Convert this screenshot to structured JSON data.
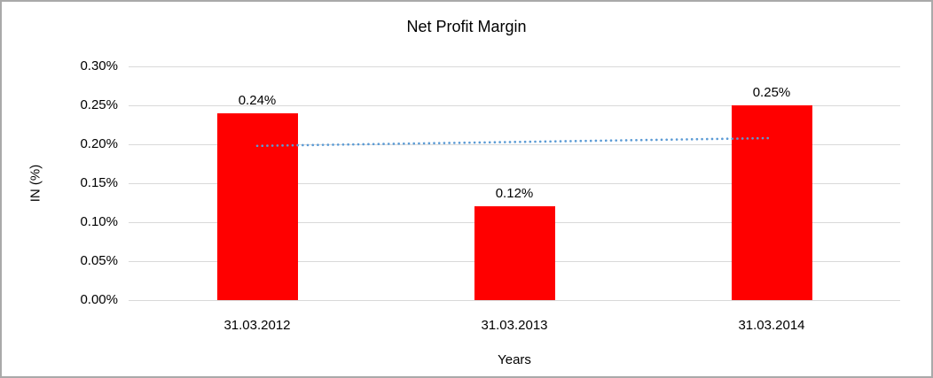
{
  "chart_data": {
    "type": "bar",
    "title": "Net Profit Margin",
    "xlabel": "Years",
    "ylabel": "IN (%)",
    "categories": [
      "31.03.2012",
      "31.03.2013",
      "31.03.2014"
    ],
    "values": [
      0.24,
      0.12,
      0.25
    ],
    "data_labels": [
      "0.24%",
      "0.12%",
      "0.25%"
    ],
    "ylim": [
      0,
      0.3
    ],
    "ytick_step": 0.05,
    "ytick_labels": [
      "0.00%",
      "0.05%",
      "0.10%",
      "0.15%",
      "0.20%",
      "0.25%",
      "0.30%"
    ],
    "grid": true,
    "legend_position": "none",
    "bar_color": "#FF0000",
    "gridline_color": "#D9D9D9",
    "text_color": "#000000",
    "trendline": {
      "type": "linear",
      "style": "dotted",
      "color": "#5B9BD5",
      "start_value": 0.198,
      "end_value": 0.208
    }
  }
}
